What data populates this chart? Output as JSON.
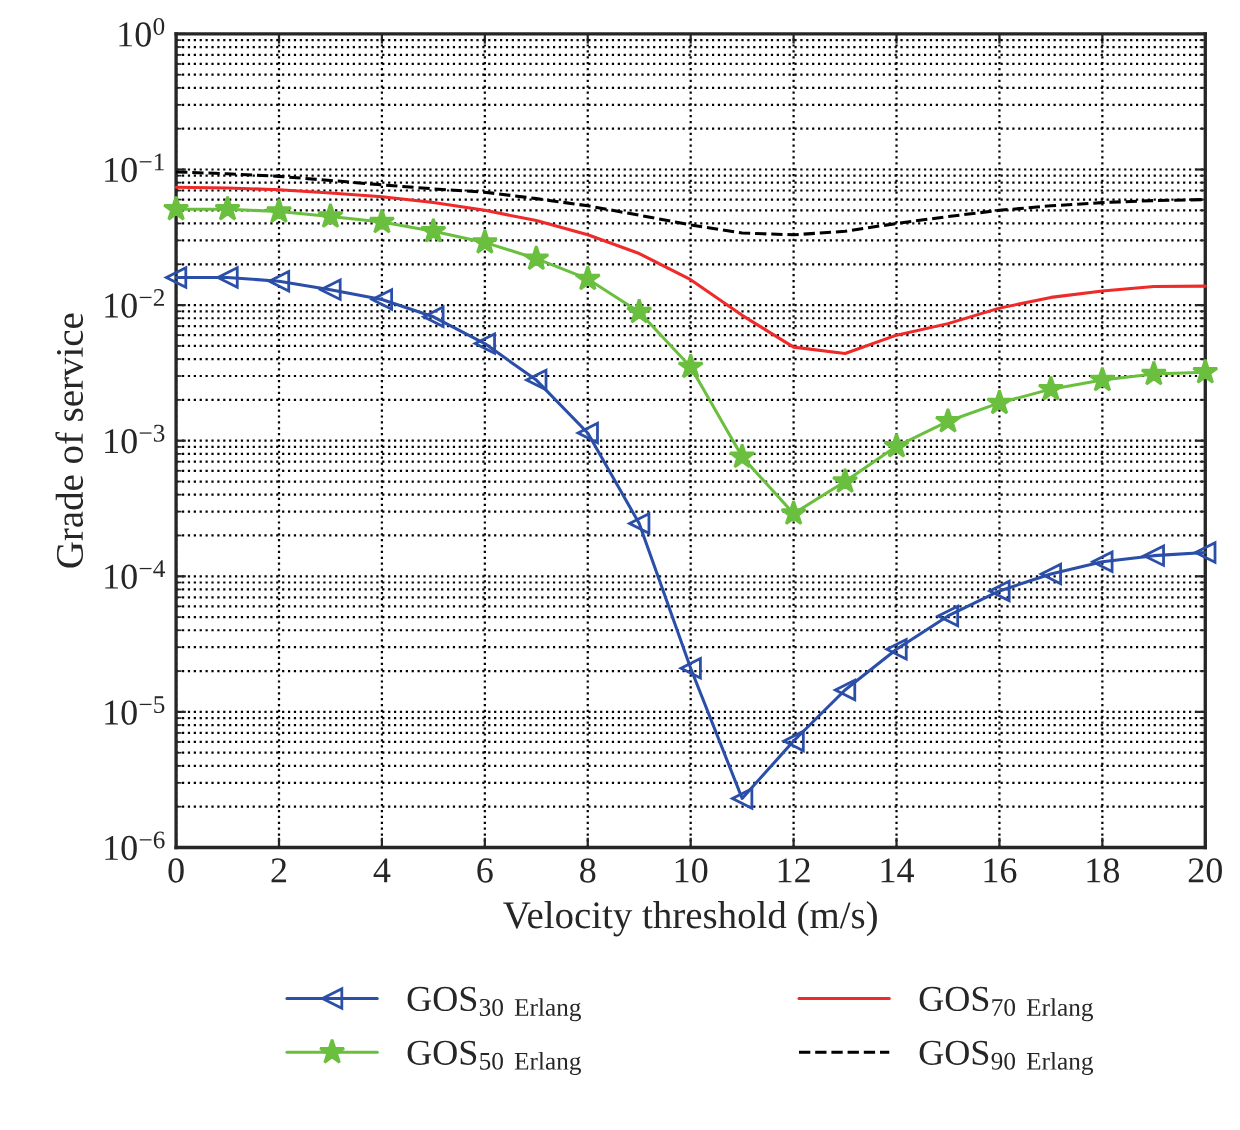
{
  "chart_data": {
    "type": "line",
    "xlabel": "Velocity threshold (m/s)",
    "ylabel": "Grade of service",
    "x": [
      0,
      1,
      2,
      3,
      4,
      5,
      6,
      7,
      8,
      9,
      10,
      11,
      12,
      13,
      14,
      15,
      16,
      17,
      18,
      19,
      20
    ],
    "series": [
      {
        "name": "GOS$_{30}$ $_{Erlang}$",
        "color": "#2b4ea8",
        "marker": "triangle",
        "values": [
          0.016,
          0.016,
          0.015,
          0.013,
          0.011,
          0.0082,
          0.0052,
          0.0028,
          0.00114,
          0.000245,
          2.1e-05,
          2.3e-06,
          6.1e-06,
          1.45e-05,
          2.9e-05,
          5.1e-05,
          7.8e-05,
          0.000104,
          0.000128,
          0.000142,
          0.00015
        ]
      },
      {
        "name": "GOS$_{50}$ $_{Erlang}$",
        "color": "#6abf3f",
        "marker": "star",
        "values": [
          0.051,
          0.051,
          0.049,
          0.045,
          0.041,
          0.035,
          0.029,
          0.022,
          0.0156,
          0.0089,
          0.0035,
          0.00076,
          0.00029,
          0.0005,
          0.00091,
          0.00139,
          0.0019,
          0.0024,
          0.0028,
          0.0031,
          0.0032
        ]
      },
      {
        "name": "GOS$_{70}$ $_{Erlang}$",
        "color": "#ee2a2a",
        "marker": "none",
        "values": [
          0.074,
          0.073,
          0.071,
          0.067,
          0.063,
          0.057,
          0.05,
          0.042,
          0.033,
          0.024,
          0.0154,
          0.0084,
          0.0049,
          0.0044,
          0.006,
          0.0073,
          0.0095,
          0.0114,
          0.0127,
          0.0137,
          0.0138
        ]
      },
      {
        "name": "GOS$_{90}$ $_{Erlang}$",
        "color": "#000000",
        "marker": "none",
        "line_style": "dashed",
        "values": [
          0.096,
          0.093,
          0.089,
          0.083,
          0.077,
          0.072,
          0.068,
          0.061,
          0.054,
          0.046,
          0.039,
          0.034,
          0.033,
          0.035,
          0.04,
          0.045,
          0.05,
          0.054,
          0.057,
          0.059,
          0.06
        ]
      }
    ],
    "log": "y",
    "xlim": [
      0,
      20
    ],
    "xticks": [
      0,
      2,
      4,
      6,
      8,
      10,
      12,
      14,
      16,
      18,
      20
    ],
    "ylim": [
      1e-06,
      1
    ],
    "yticks": [
      {
        "value": 1e-06,
        "label": "10$^{−6}$"
      },
      {
        "value": 1e-05,
        "label": "10$^{−5}$"
      },
      {
        "value": 0.0001,
        "label": "10$^{−4}$"
      },
      {
        "value": 0.001,
        "label": "10$^{−3}$"
      },
      {
        "value": 0.01,
        "label": "10$^{−2}$"
      },
      {
        "value": 0.1,
        "label": "10$^{−1}$"
      },
      {
        "value": 1,
        "label": "10$^{0}$"
      }
    ],
    "grid": true,
    "legend": "bottom",
    "line_style": "solid"
  }
}
